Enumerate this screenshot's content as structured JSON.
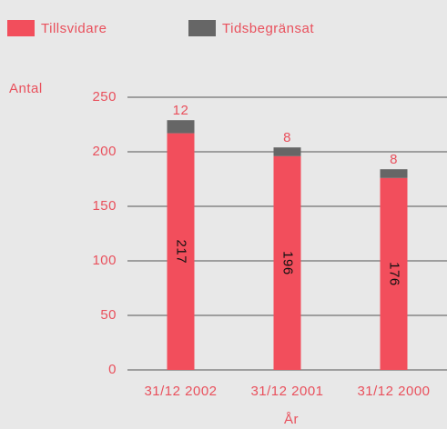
{
  "chart_data": {
    "type": "stacked_bar",
    "y_label": "Antal",
    "x_label": "År",
    "categories": [
      "31/12 2002",
      "31/12 2001",
      "31/12 2000"
    ],
    "series": [
      {
        "name": "Tillsvidare",
        "color": "#f24e5c",
        "values": [
          217,
          196,
          176
        ]
      },
      {
        "name": "Tidsbegränsat",
        "color": "#666666",
        "values": [
          12,
          8,
          8
        ]
      }
    ],
    "ylim": [
      0,
      250
    ],
    "yticks": [
      0,
      50,
      100,
      150,
      200,
      250
    ],
    "grid": true
  }
}
